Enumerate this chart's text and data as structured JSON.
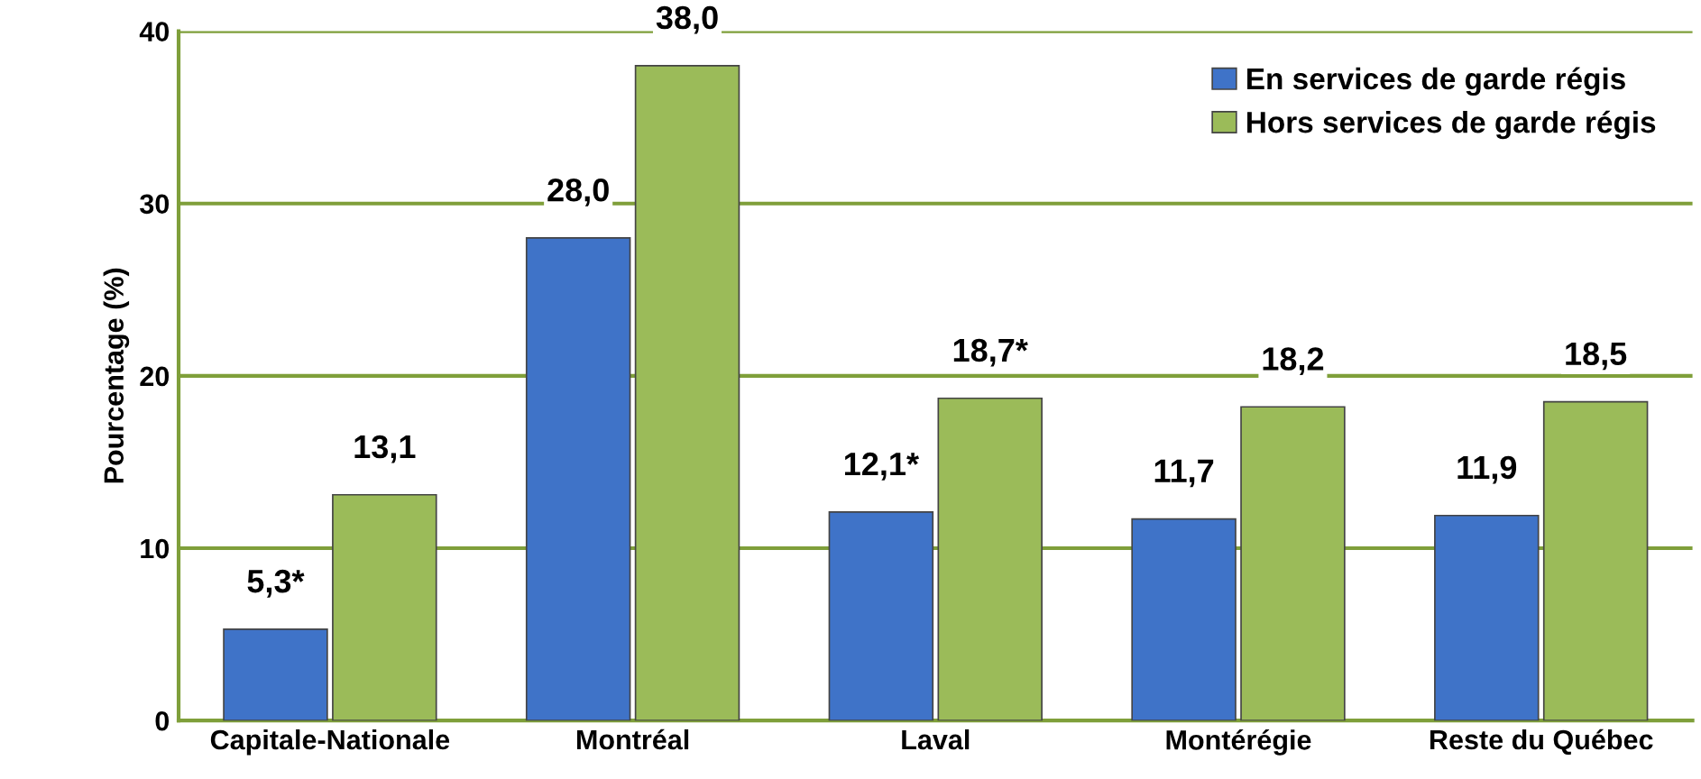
{
  "chart_data": {
    "type": "bar",
    "ylabel": "Pourcentage (%)",
    "categories": [
      "Capitale-Nationale",
      "Montréal",
      "Laval",
      "Montérégie",
      "Reste du Québec"
    ],
    "series": [
      {
        "name": "En services de garde régis",
        "color": "#3f73c8",
        "values": [
          5.3,
          28.0,
          12.1,
          11.7,
          11.9
        ],
        "value_labels": [
          "5,3*",
          "28,0",
          "12,1*",
          "11,7",
          "11,9"
        ]
      },
      {
        "name": "Hors services de garde régis",
        "color": "#9bbb59",
        "values": [
          13.1,
          38.0,
          18.7,
          18.2,
          18.5
        ],
        "value_labels": [
          "13,1",
          "38,0",
          "18,7*",
          "18,2",
          "18,5"
        ]
      }
    ],
    "ylim": [
      0,
      40
    ],
    "yticks": [
      0,
      10,
      20,
      30,
      40
    ],
    "grid": "y",
    "legend": "top right"
  }
}
